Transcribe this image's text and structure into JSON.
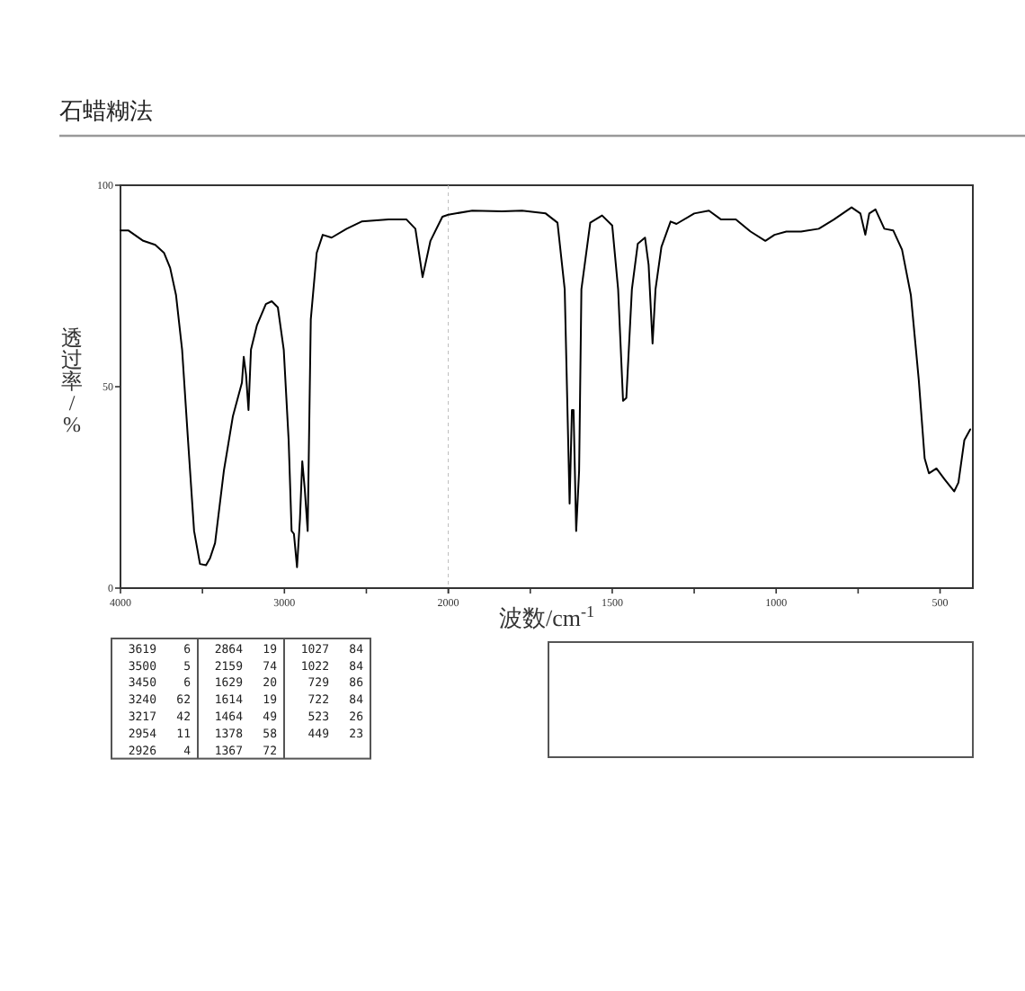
{
  "chart_data": [
    {
      "type": "line",
      "title": "石蜡糊法",
      "ylabel": "透过率/%",
      "color": "#000000",
      "line_style": "solid",
      "xlim": [
        4000,
        2000
      ],
      "ylim": [
        0,
        100
      ],
      "xticks": [
        4000,
        {
          "value": 3500,
          "label": null
        },
        3000,
        {
          "value": 2500,
          "label": null
        },
        2000
      ],
      "yticks": [
        0,
        50,
        100
      ],
      "x": [
        4000,
        3953,
        3861,
        3788,
        3734,
        3697,
        3661,
        3624,
        3588,
        3551,
        3515,
        3478,
        3453,
        3423,
        3369,
        3314,
        3259,
        3248,
        3234,
        3219,
        3204,
        3168,
        3113,
        3077,
        3040,
        3004,
        2974,
        2956,
        2942,
        2923,
        2905,
        2891,
        2876,
        2858,
        2839,
        2803,
        2766,
        2712,
        2620,
        2529,
        2365,
        2255,
        2201,
        2157,
        2109,
        2036,
        2000
      ],
      "values": [
        88.8,
        88.8,
        86.2,
        85.2,
        83.2,
        79.5,
        72.7,
        59.2,
        36.7,
        14.2,
        6.0,
        5.7,
        7.5,
        11.2,
        29.2,
        42.7,
        51,
        57.4,
        53,
        44.2,
        59.2,
        65.2,
        70.5,
        71.2,
        69.7,
        59.2,
        36.7,
        14.2,
        13.5,
        5.2,
        17.2,
        31.5,
        24.7,
        14.2,
        66.7,
        83.2,
        87.7,
        87,
        89.2,
        91,
        91.5,
        91.5,
        89.2,
        77.2,
        86.2,
        92.2,
        92.7
      ],
      "annotations": [
        "3619 6",
        "3500 5",
        "3450 6",
        "3240 62",
        "3217 42",
        "2954 11",
        "2926 4",
        "2864 19",
        "2159 74",
        "1629 20",
        "1614 19",
        "1464 49",
        "1378 58",
        "1367 72",
        "1027 84",
        "1022 84",
        "729 86",
        "722 84",
        "523 26",
        "449 23"
      ]
    },
    {
      "type": "line",
      "xlabel": "波数/cm$^{-1}$",
      "color": "#000000",
      "line_style": "solid",
      "tick_labels": "x",
      "xlim": [
        2000,
        400
      ],
      "ylim": [
        0,
        100
      ],
      "xticks": [
        {
          "value": 2000,
          "label": null
        },
        {
          "value": 1750,
          "label": null
        },
        1500,
        {
          "value": 1250,
          "label": null
        },
        1000,
        {
          "value": 750,
          "label": null
        },
        500
      ],
      "yticks": [
        0,
        50,
        100
      ],
      "x": [
        2000,
        1927,
        1836,
        1775,
        1703,
        1667,
        1645,
        1630,
        1623,
        1618,
        1610,
        1601,
        1594,
        1567,
        1531,
        1500,
        1482,
        1467,
        1457,
        1440,
        1422,
        1400,
        1389,
        1377,
        1368,
        1350,
        1322,
        1304,
        1250,
        1205,
        1168,
        1123,
        1078,
        1033,
        1005,
        969,
        924,
        870,
        824,
        770,
        743,
        728,
        716,
        697,
        670,
        643,
        616,
        589,
        565,
        547,
        534,
        511,
        486,
        457,
        444,
        426,
        408
      ],
      "values": [
        92.7,
        93.7,
        93.5,
        93.7,
        93,
        90.7,
        74.2,
        21,
        44.2,
        44.2,
        14.2,
        29.2,
        74.2,
        90.7,
        92.5,
        90,
        74.2,
        46.5,
        47.2,
        74.2,
        85.5,
        87,
        80.2,
        60.7,
        74.2,
        84.7,
        91,
        90.4,
        93,
        93.7,
        91.5,
        91.5,
        88.5,
        86.2,
        87.7,
        88.5,
        88.5,
        89.2,
        91.5,
        94.5,
        93,
        87.7,
        93,
        94,
        89.2,
        88.8,
        84,
        72.7,
        51.7,
        32.2,
        28.5,
        29.7,
        27,
        24,
        26.2,
        36.7,
        39.4
      ]
    }
  ]
}
